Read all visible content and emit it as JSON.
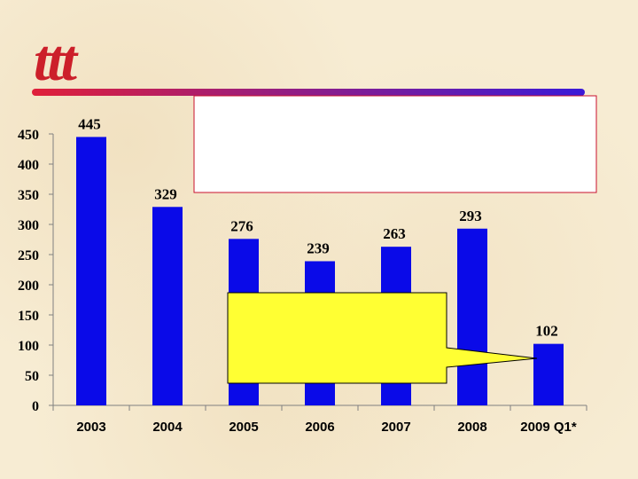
{
  "slide": {
    "logo_text": "ttt",
    "colors": {
      "background": "#f7ecd3",
      "logo": "#cc1f2a",
      "rule_left": "#e0203a",
      "rule_right": "#3a1ad8",
      "bar": "#0a0ae8",
      "callout_fill": "#ffff33"
    }
  },
  "chart_data": {
    "type": "bar",
    "title": "",
    "xlabel": "",
    "ylabel": "",
    "categories": [
      "2003",
      "2004",
      "2005",
      "2006",
      "2007",
      "2008",
      "2009 Q1*"
    ],
    "values": [
      445,
      329,
      276,
      239,
      263,
      293,
      102
    ],
    "ylim": [
      0,
      450
    ],
    "yticks": [
      0,
      50,
      100,
      150,
      200,
      250,
      300,
      350,
      400,
      450
    ],
    "grid": false,
    "data_labels": true
  }
}
